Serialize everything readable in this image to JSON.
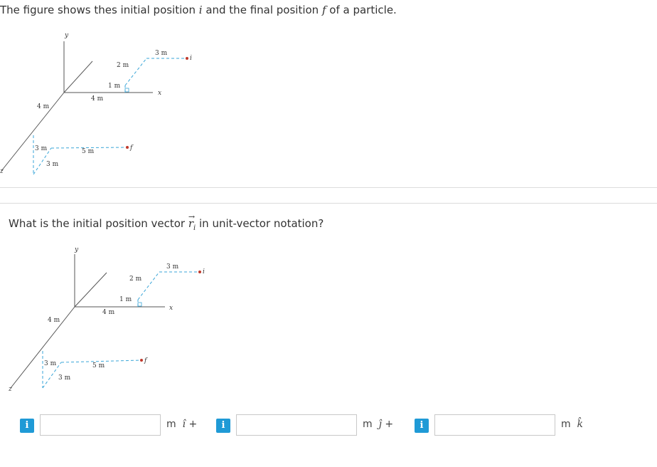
{
  "intro": {
    "part1": "The figure shows thes initial position ",
    "var_i": "i",
    "part2": " and the final position ",
    "var_f": "f",
    "part3": " of a particle."
  },
  "figure": {
    "axis_y": "y",
    "axis_x": "x",
    "axis_z": "z",
    "labels": {
      "i_3m": "3 m",
      "i_2m": "2 m",
      "i_1m": "1 m",
      "i_4m": "4 m",
      "f_4m": "4 m",
      "f_3m_a": "3 m",
      "f_3m_b": "3 m",
      "f_5m": "5 m",
      "point_i": "i",
      "point_f": "f"
    }
  },
  "question": {
    "text_before": "What is the initial position vector ",
    "vector_symbol": "r",
    "vector_arrow": "→",
    "vector_subscript": "i",
    "text_after": " in unit-vector notation?"
  },
  "answers": [
    {
      "info_label": "i",
      "value": "",
      "unit": "m",
      "hat": "î",
      "suffix": " +"
    },
    {
      "info_label": "i",
      "value": "",
      "unit": "m",
      "hat": "ĵ",
      "suffix": " +"
    },
    {
      "info_label": "i",
      "value": "",
      "unit": "m",
      "hat": "k̂",
      "suffix": ""
    }
  ],
  "colors": {
    "dash": "#3aa6d8",
    "point": "#c0392b",
    "info_button": "#1f9ad6"
  }
}
